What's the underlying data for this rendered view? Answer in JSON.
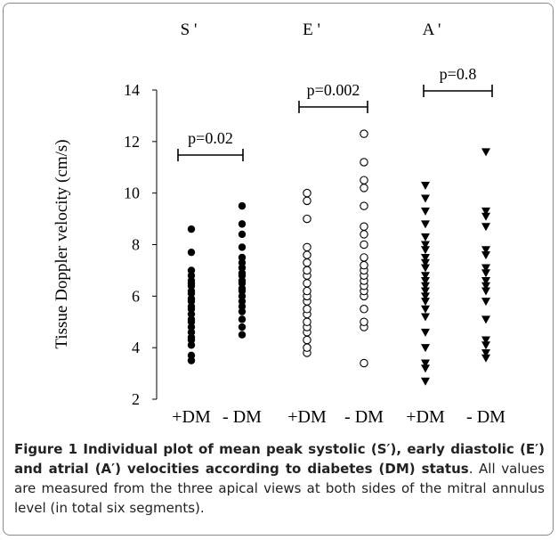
{
  "chart_data": {
    "type": "scatter",
    "ylabel": "Tissue Doppler velocity (cm/s)",
    "ylim": [
      2,
      14
    ],
    "yticks": [
      "2",
      "4",
      "6",
      "8",
      "10",
      "12",
      "14"
    ],
    "categories": [
      "+DM",
      "- DM",
      "+DM",
      "- DM",
      "+DM",
      "- DM"
    ],
    "groups": [
      {
        "label": "S '",
        "pvalue": "p=0.02"
      },
      {
        "label": "E '",
        "pvalue": "p=0.002"
      },
      {
        "label": "A '",
        "pvalue": "p=0.8"
      }
    ],
    "series": [
      {
        "marker": "filled-circle",
        "values": [
          3.5,
          3.7,
          4.1,
          4.3,
          4.4,
          4.6,
          4.8,
          5.0,
          5.1,
          5.3,
          5.5,
          5.6,
          5.8,
          5.9,
          6.1,
          6.2,
          6.4,
          6.5,
          6.6,
          6.8,
          7.0,
          7.7,
          8.6
        ]
      },
      {
        "marker": "filled-circle",
        "values": [
          4.5,
          4.8,
          5.1,
          5.4,
          5.6,
          5.8,
          6.0,
          6.2,
          6.3,
          6.5,
          6.6,
          6.8,
          6.9,
          7.1,
          7.3,
          7.5,
          7.9,
          8.4,
          8.8,
          9.5
        ]
      },
      {
        "marker": "open-circle",
        "values": [
          3.8,
          4.0,
          4.3,
          4.6,
          4.8,
          5.0,
          5.3,
          5.5,
          5.8,
          6.0,
          6.2,
          6.5,
          6.8,
          7.0,
          7.3,
          7.6,
          7.9,
          9.0,
          9.7,
          10.0
        ]
      },
      {
        "marker": "open-circle",
        "values": [
          3.4,
          4.8,
          5.0,
          5.5,
          6.0,
          6.2,
          6.4,
          6.6,
          6.8,
          7.0,
          7.2,
          7.5,
          8.0,
          8.4,
          8.7,
          9.5,
          10.2,
          10.5,
          11.2,
          12.3
        ]
      },
      {
        "marker": "filled-triangle-down",
        "values": [
          2.7,
          3.2,
          3.4,
          4.0,
          4.6,
          5.2,
          5.5,
          5.8,
          6.0,
          6.2,
          6.4,
          6.6,
          6.8,
          7.1,
          7.3,
          7.5,
          7.8,
          8.0,
          8.3,
          8.8,
          9.3,
          9.8,
          10.3
        ]
      },
      {
        "marker": "filled-triangle-down",
        "values": [
          3.6,
          3.8,
          4.1,
          4.3,
          5.1,
          5.8,
          6.2,
          6.4,
          6.6,
          6.9,
          7.1,
          7.6,
          7.8,
          8.7,
          9.1,
          9.3,
          11.6
        ]
      }
    ]
  },
  "caption": {
    "bold": "Figure 1 Individual plot of mean peak systolic (S′), early diastolic (E′) and atrial (A′) velocities according to diabetes (DM) status",
    "text": ". All values are measured from the three apical views at both sides of the mitral annulus level (in total six segments)."
  }
}
